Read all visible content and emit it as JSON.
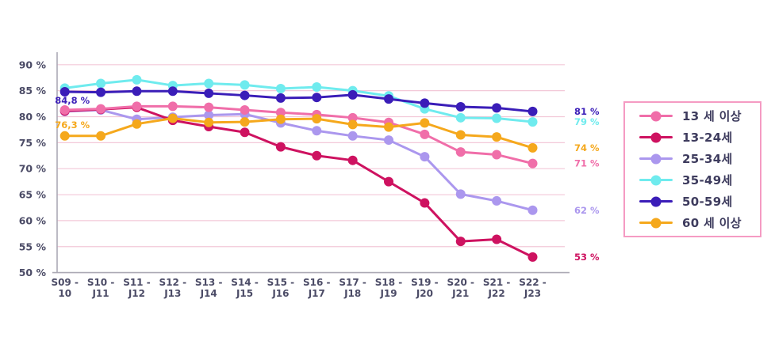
{
  "chart_data": {
    "type": "line",
    "title": "",
    "categories": [
      [
        "S09 -",
        "10"
      ],
      [
        "S10 -",
        "J11"
      ],
      [
        "S11 -",
        "J12"
      ],
      [
        "S12 -",
        "J13"
      ],
      [
        "S13 -",
        "J14"
      ],
      [
        "S14 -",
        "J15"
      ],
      [
        "S15 -",
        "J16"
      ],
      [
        "S16 -",
        "J17"
      ],
      [
        "S17 -",
        "J18"
      ],
      [
        "S18 -",
        "J19"
      ],
      [
        "S19 -",
        "J20"
      ],
      [
        "S20 -",
        "J21"
      ],
      [
        "S21 -",
        "J22"
      ],
      [
        "S22 -",
        "J23"
      ]
    ],
    "ylim": [
      50,
      90
    ],
    "ytick_labels": [
      "90 %",
      "85 %",
      "80 %",
      "75 %",
      "70 %",
      "65 %",
      "60 %",
      "55 %",
      "50 %"
    ],
    "grid": true,
    "series": [
      {
        "name": "25-34세",
        "color": "#ab97ee",
        "values": [
          81.0,
          81.3,
          79.5,
          79.9,
          80.3,
          80.5,
          78.8,
          77.3,
          76.3,
          75.5,
          72.3,
          65.1,
          63.8,
          62
        ]
      },
      {
        "name": "13-24세",
        "color": "#ce1260",
        "values": [
          81.1,
          81.4,
          81.8,
          79.3,
          78.1,
          77.0,
          74.2,
          72.5,
          71.6,
          67.5,
          63.4,
          56.0,
          56.4,
          53
        ]
      },
      {
        "name": "13 세 이상",
        "color": "#f06ea9",
        "values": [
          81.3,
          81.5,
          82.0,
          82.0,
          81.8,
          81.3,
          80.8,
          80.4,
          79.8,
          78.9,
          76.6,
          73.2,
          72.7,
          71
        ]
      },
      {
        "name": "35-49세",
        "color": "#6febee",
        "values": [
          85.5,
          86.4,
          87.1,
          86.0,
          86.4,
          86.1,
          85.4,
          85.7,
          85.0,
          84.0,
          81.5,
          79.8,
          79.7,
          79
        ]
      },
      {
        "name": "50-59세",
        "color": "#3a1db8",
        "values": [
          84.8,
          84.7,
          84.9,
          84.9,
          84.5,
          84.1,
          83.6,
          83.7,
          84.2,
          83.4,
          82.6,
          81.9,
          81.7,
          81
        ]
      },
      {
        "name": "60 세 이상",
        "color": "#f5a81c",
        "values": [
          76.3,
          76.3,
          78.6,
          79.7,
          78.9,
          79.0,
          79.5,
          79.6,
          78.5,
          78.0,
          78.8,
          76.5,
          76.1,
          74
        ]
      }
    ],
    "start_labels": [
      {
        "text": "84,8 %",
        "series": 4,
        "dy": 11
      },
      {
        "text": "76,3 %",
        "series": 5,
        "dy": -14
      }
    ],
    "end_labels": [
      {
        "text": "81 %",
        "series": 4
      },
      {
        "text": "79 %",
        "series": 3
      },
      {
        "text": "74 %",
        "series": 5
      },
      {
        "text": "71 %",
        "series": 2
      },
      {
        "text": "62 %",
        "series": 0
      },
      {
        "text": "53 %",
        "series": 1
      }
    ],
    "legend_position": "right-box"
  },
  "legend": {
    "items": [
      {
        "label": "13 세 이상",
        "series": 2
      },
      {
        "label": "13-24세",
        "series": 1
      },
      {
        "label": "25-34세",
        "series": 0
      },
      {
        "label": "35-49세",
        "series": 3
      },
      {
        "label": "50-59세",
        "series": 4
      },
      {
        "label": "60 세 이상",
        "series": 5
      }
    ]
  },
  "colors": {
    "background": "#ffffff",
    "gridline": "#f3c8d8",
    "axis": "#aba9b5",
    "tick_text": "#4b4b66",
    "legend_border": "#f59bc3",
    "legend_text": "#3e3c5e"
  }
}
